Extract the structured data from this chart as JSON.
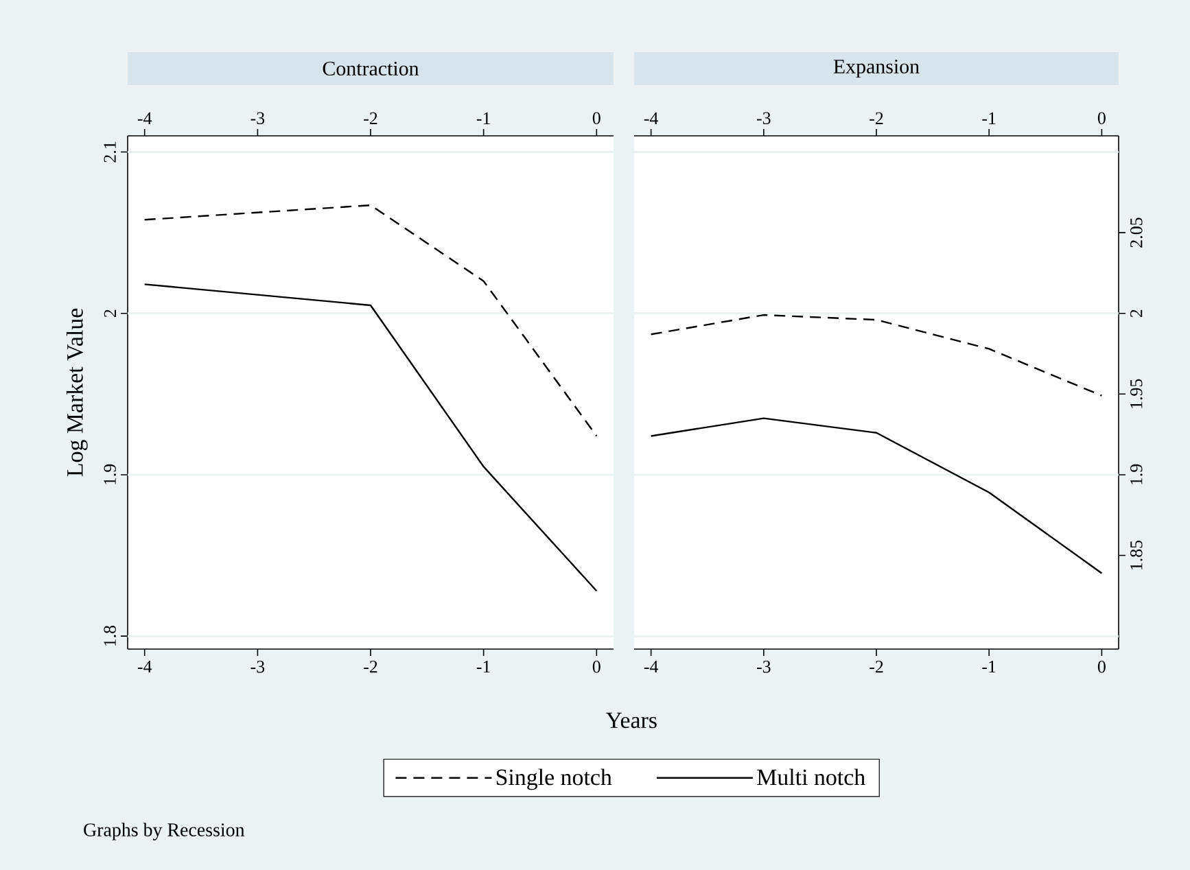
{
  "chart_data": [
    {
      "type": "line",
      "title": "Contraction",
      "xlabel": "Years",
      "ylabel": "Log Market Value",
      "x": [
        -4,
        -3,
        -2,
        -1,
        0
      ],
      "xlim": [
        -4.15,
        0.15
      ],
      "xticks": [
        -4,
        -3,
        -2,
        -1,
        0
      ],
      "x2lim": [
        -4.15,
        0.15
      ],
      "x2ticks": [
        -4,
        -3,
        -2,
        -1,
        0
      ],
      "ylim": [
        1.792,
        2.11
      ],
      "yticks": [
        1.8,
        1.9,
        2,
        2.1
      ],
      "grid": "y",
      "legend": "bottom",
      "series": [
        {
          "name": "Single notch",
          "color": "#000000",
          "line_style": "dashed",
          "values": [
            2.058,
            null,
            2.067,
            2.02,
            1.924
          ]
        },
        {
          "name": "Multi notch",
          "color": "#000000",
          "line_style": "solid",
          "values": [
            2.018,
            null,
            2.005,
            1.905,
            1.828
          ]
        }
      ],
      "annotations": [
        "Graphs by Recession"
      ]
    },
    {
      "type": "line",
      "title": "Expansion",
      "x": [
        -4,
        -3,
        -2,
        -1,
        0
      ],
      "xlim": [
        -4.15,
        0.15
      ],
      "xticks": [
        -4,
        -3,
        -2,
        -1,
        0
      ],
      "x2lim": [
        -4.15,
        0.15
      ],
      "x2ticks": [
        -4,
        -3,
        -2,
        -1,
        0
      ],
      "ylim": [
        1.792,
        2.11
      ],
      "yticks": [
        1.85,
        1.9,
        1.95,
        2,
        2.05
      ],
      "grid": "y",
      "series": [
        {
          "color": "#000000",
          "line_style": "dashed",
          "values": [
            1.987,
            1.999,
            1.996,
            1.978,
            1.949
          ]
        },
        {
          "color": "#000000",
          "line_style": "solid",
          "values": [
            1.924,
            1.935,
            1.926,
            1.889,
            1.839
          ]
        }
      ]
    }
  ]
}
